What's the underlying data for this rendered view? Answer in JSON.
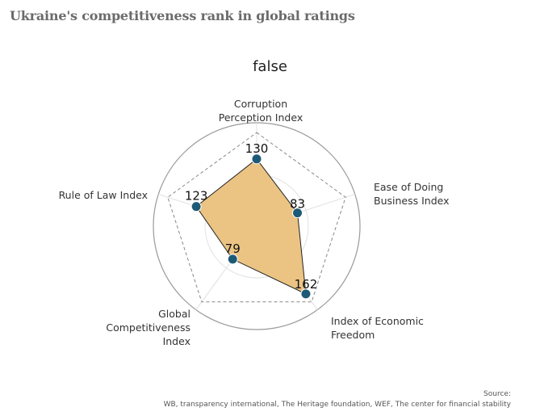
{
  "title": "Ukraine's competitiveness rank in global ratings",
  "chart_data": {
    "type": "radar",
    "title": "false",
    "axes": [
      [
        "Corruption",
        "Perception Index"
      ],
      [
        "Ease of Doing",
        "Business Index"
      ],
      [
        "Index of Economic",
        "Freedom"
      ],
      [
        "Global",
        "Competitiveness",
        "Index"
      ],
      [
        "Rule of Law Index"
      ]
    ],
    "values": [
      130,
      83,
      162,
      79,
      123
    ],
    "ticks": [
      0,
      100
    ],
    "rmax": 200,
    "fill_color": "#ebc484",
    "marker_color": "#1d5a78"
  },
  "source_label": "Source:",
  "source_text": "WB, transparency international, The Heritage foundation, WEF, The center for financial stability"
}
